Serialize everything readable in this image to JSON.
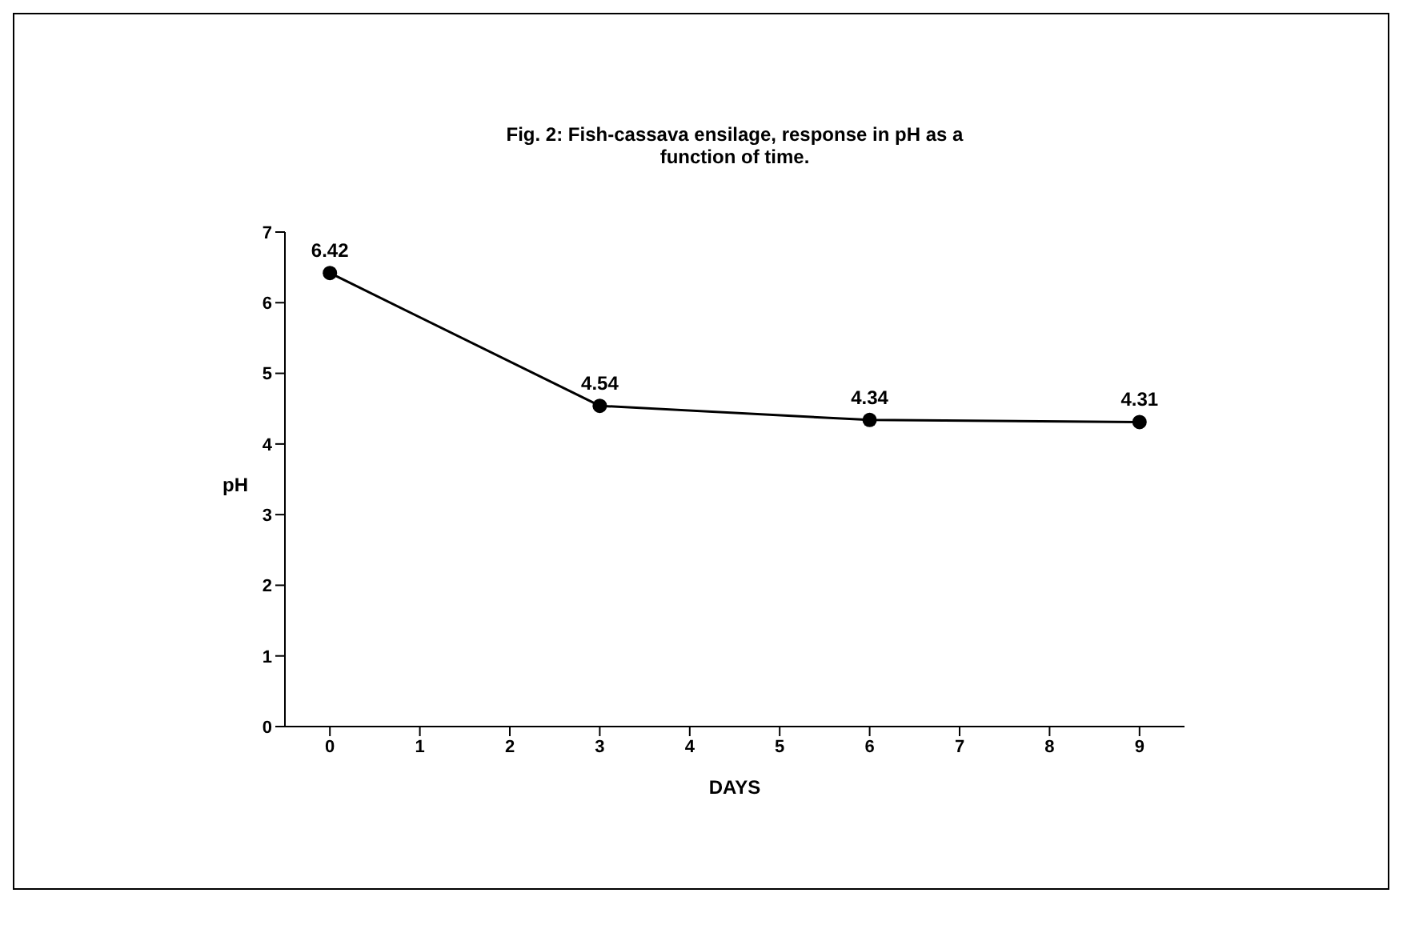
{
  "chart_data": {
    "type": "line",
    "title": "Fig. 2: Fish-cassava ensilage, response in pH as a function of time.",
    "xlabel": "DAYS",
    "ylabel": "pH",
    "x": [
      0,
      3,
      6,
      9
    ],
    "series": [
      {
        "color": "#000000",
        "values": [
          6.42,
          4.54,
          4.34,
          4.31
        ]
      }
    ],
    "xlim": [
      -0.5,
      9.5
    ],
    "xticks": [
      0,
      1,
      2,
      3,
      4,
      5,
      6,
      7,
      8,
      9
    ],
    "ylim": [
      0,
      7
    ],
    "yticks": [
      0,
      1,
      2,
      3,
      4,
      5,
      6,
      7
    ],
    "data_labels": true,
    "marker": "circle",
    "line_style": "solid",
    "grid": false,
    "legend": false
  }
}
